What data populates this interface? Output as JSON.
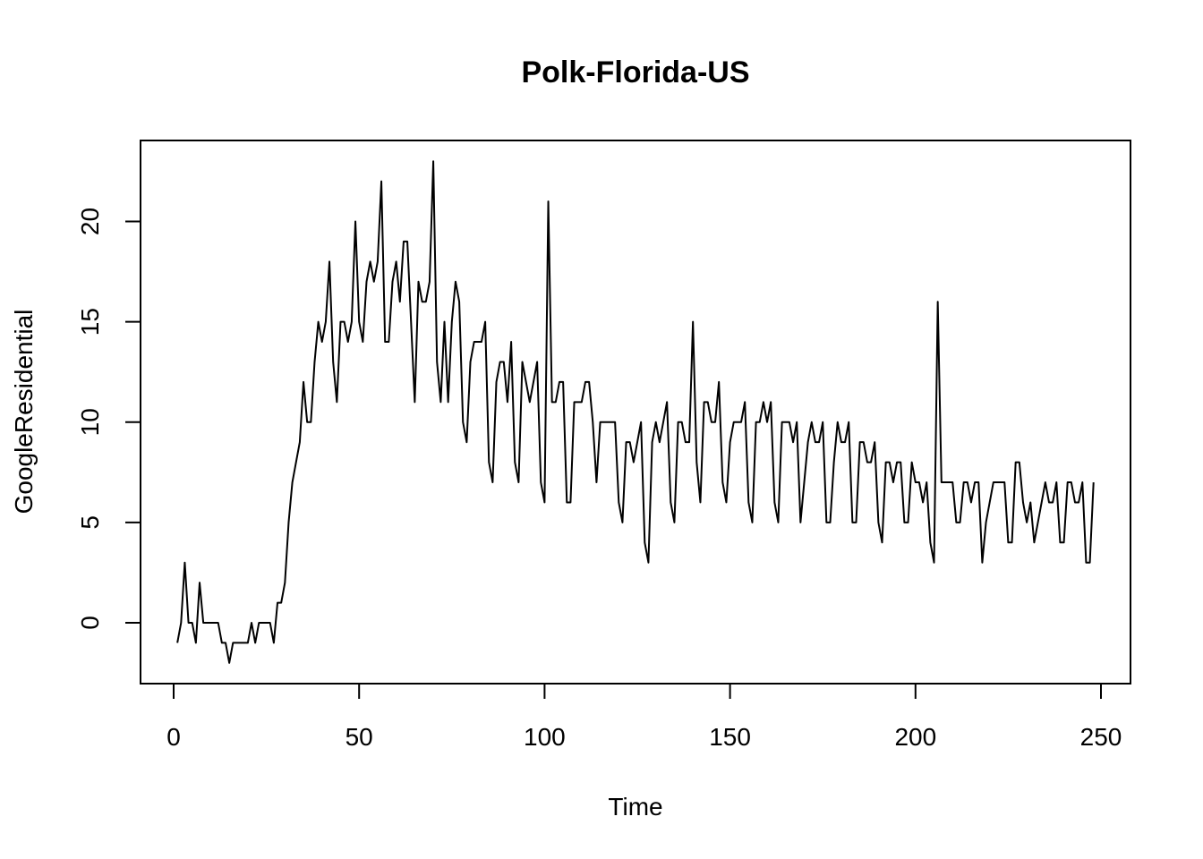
{
  "chart_data": {
    "type": "line",
    "title": "Polk-Florida-US",
    "xlabel": "Time",
    "ylabel": "GoogleResidential",
    "xlim": [
      0,
      250
    ],
    "ylim": [
      -2,
      23
    ],
    "xticks": [
      0,
      50,
      100,
      150,
      200,
      250
    ],
    "yticks": [
      0,
      5,
      10,
      15,
      20
    ],
    "grid": false,
    "series": [
      {
        "color": "#000000",
        "x_start": 1,
        "values": [
          -1,
          0,
          3,
          0,
          0,
          -1,
          2,
          0,
          0,
          0,
          0,
          0,
          -1,
          -1,
          -2,
          -1,
          -1,
          -1,
          -1,
          -1,
          0,
          -1,
          0,
          0,
          0,
          0,
          -1,
          1,
          1,
          2,
          5,
          7,
          8,
          9,
          12,
          10,
          10,
          13,
          15,
          14,
          15,
          18,
          13,
          11,
          15,
          15,
          14,
          15,
          20,
          15,
          14,
          17,
          18,
          17,
          18,
          22,
          14,
          14,
          17,
          18,
          16,
          19,
          19,
          15,
          11,
          17,
          16,
          16,
          17,
          23,
          13,
          11,
          15,
          11,
          15,
          17,
          16,
          10,
          9,
          13,
          14,
          14,
          14,
          15,
          8,
          7,
          12,
          13,
          13,
          11,
          14,
          8,
          7,
          13,
          12,
          11,
          12,
          13,
          7,
          6,
          21,
          11,
          11,
          12,
          12,
          6,
          6,
          11,
          11,
          11,
          12,
          12,
          10,
          7,
          10,
          10,
          10,
          10,
          10,
          6,
          5,
          9,
          9,
          8,
          9,
          10,
          4,
          3,
          9,
          10,
          9,
          10,
          11,
          6,
          5,
          10,
          10,
          9,
          9,
          15,
          8,
          6,
          11,
          11,
          10,
          10,
          12,
          7,
          6,
          9,
          10,
          10,
          10,
          11,
          6,
          5,
          10,
          10,
          11,
          10,
          11,
          6,
          5,
          10,
          10,
          10,
          9,
          10,
          5,
          7,
          9,
          10,
          9,
          9,
          10,
          5,
          5,
          8,
          10,
          9,
          9,
          10,
          5,
          5,
          9,
          9,
          8,
          8,
          9,
          5,
          4,
          8,
          8,
          7,
          8,
          8,
          5,
          5,
          8,
          7,
          7,
          6,
          7,
          4,
          3,
          16,
          7,
          7,
          7,
          7,
          5,
          5,
          7,
          7,
          6,
          7,
          7,
          3,
          5,
          6,
          7,
          7,
          7,
          7,
          4,
          4,
          8,
          8,
          6,
          5,
          6,
          4,
          5,
          6,
          7,
          6,
          6,
          7,
          4,
          4,
          7,
          7,
          6,
          6,
          7,
          3,
          3,
          7
        ]
      }
    ]
  }
}
